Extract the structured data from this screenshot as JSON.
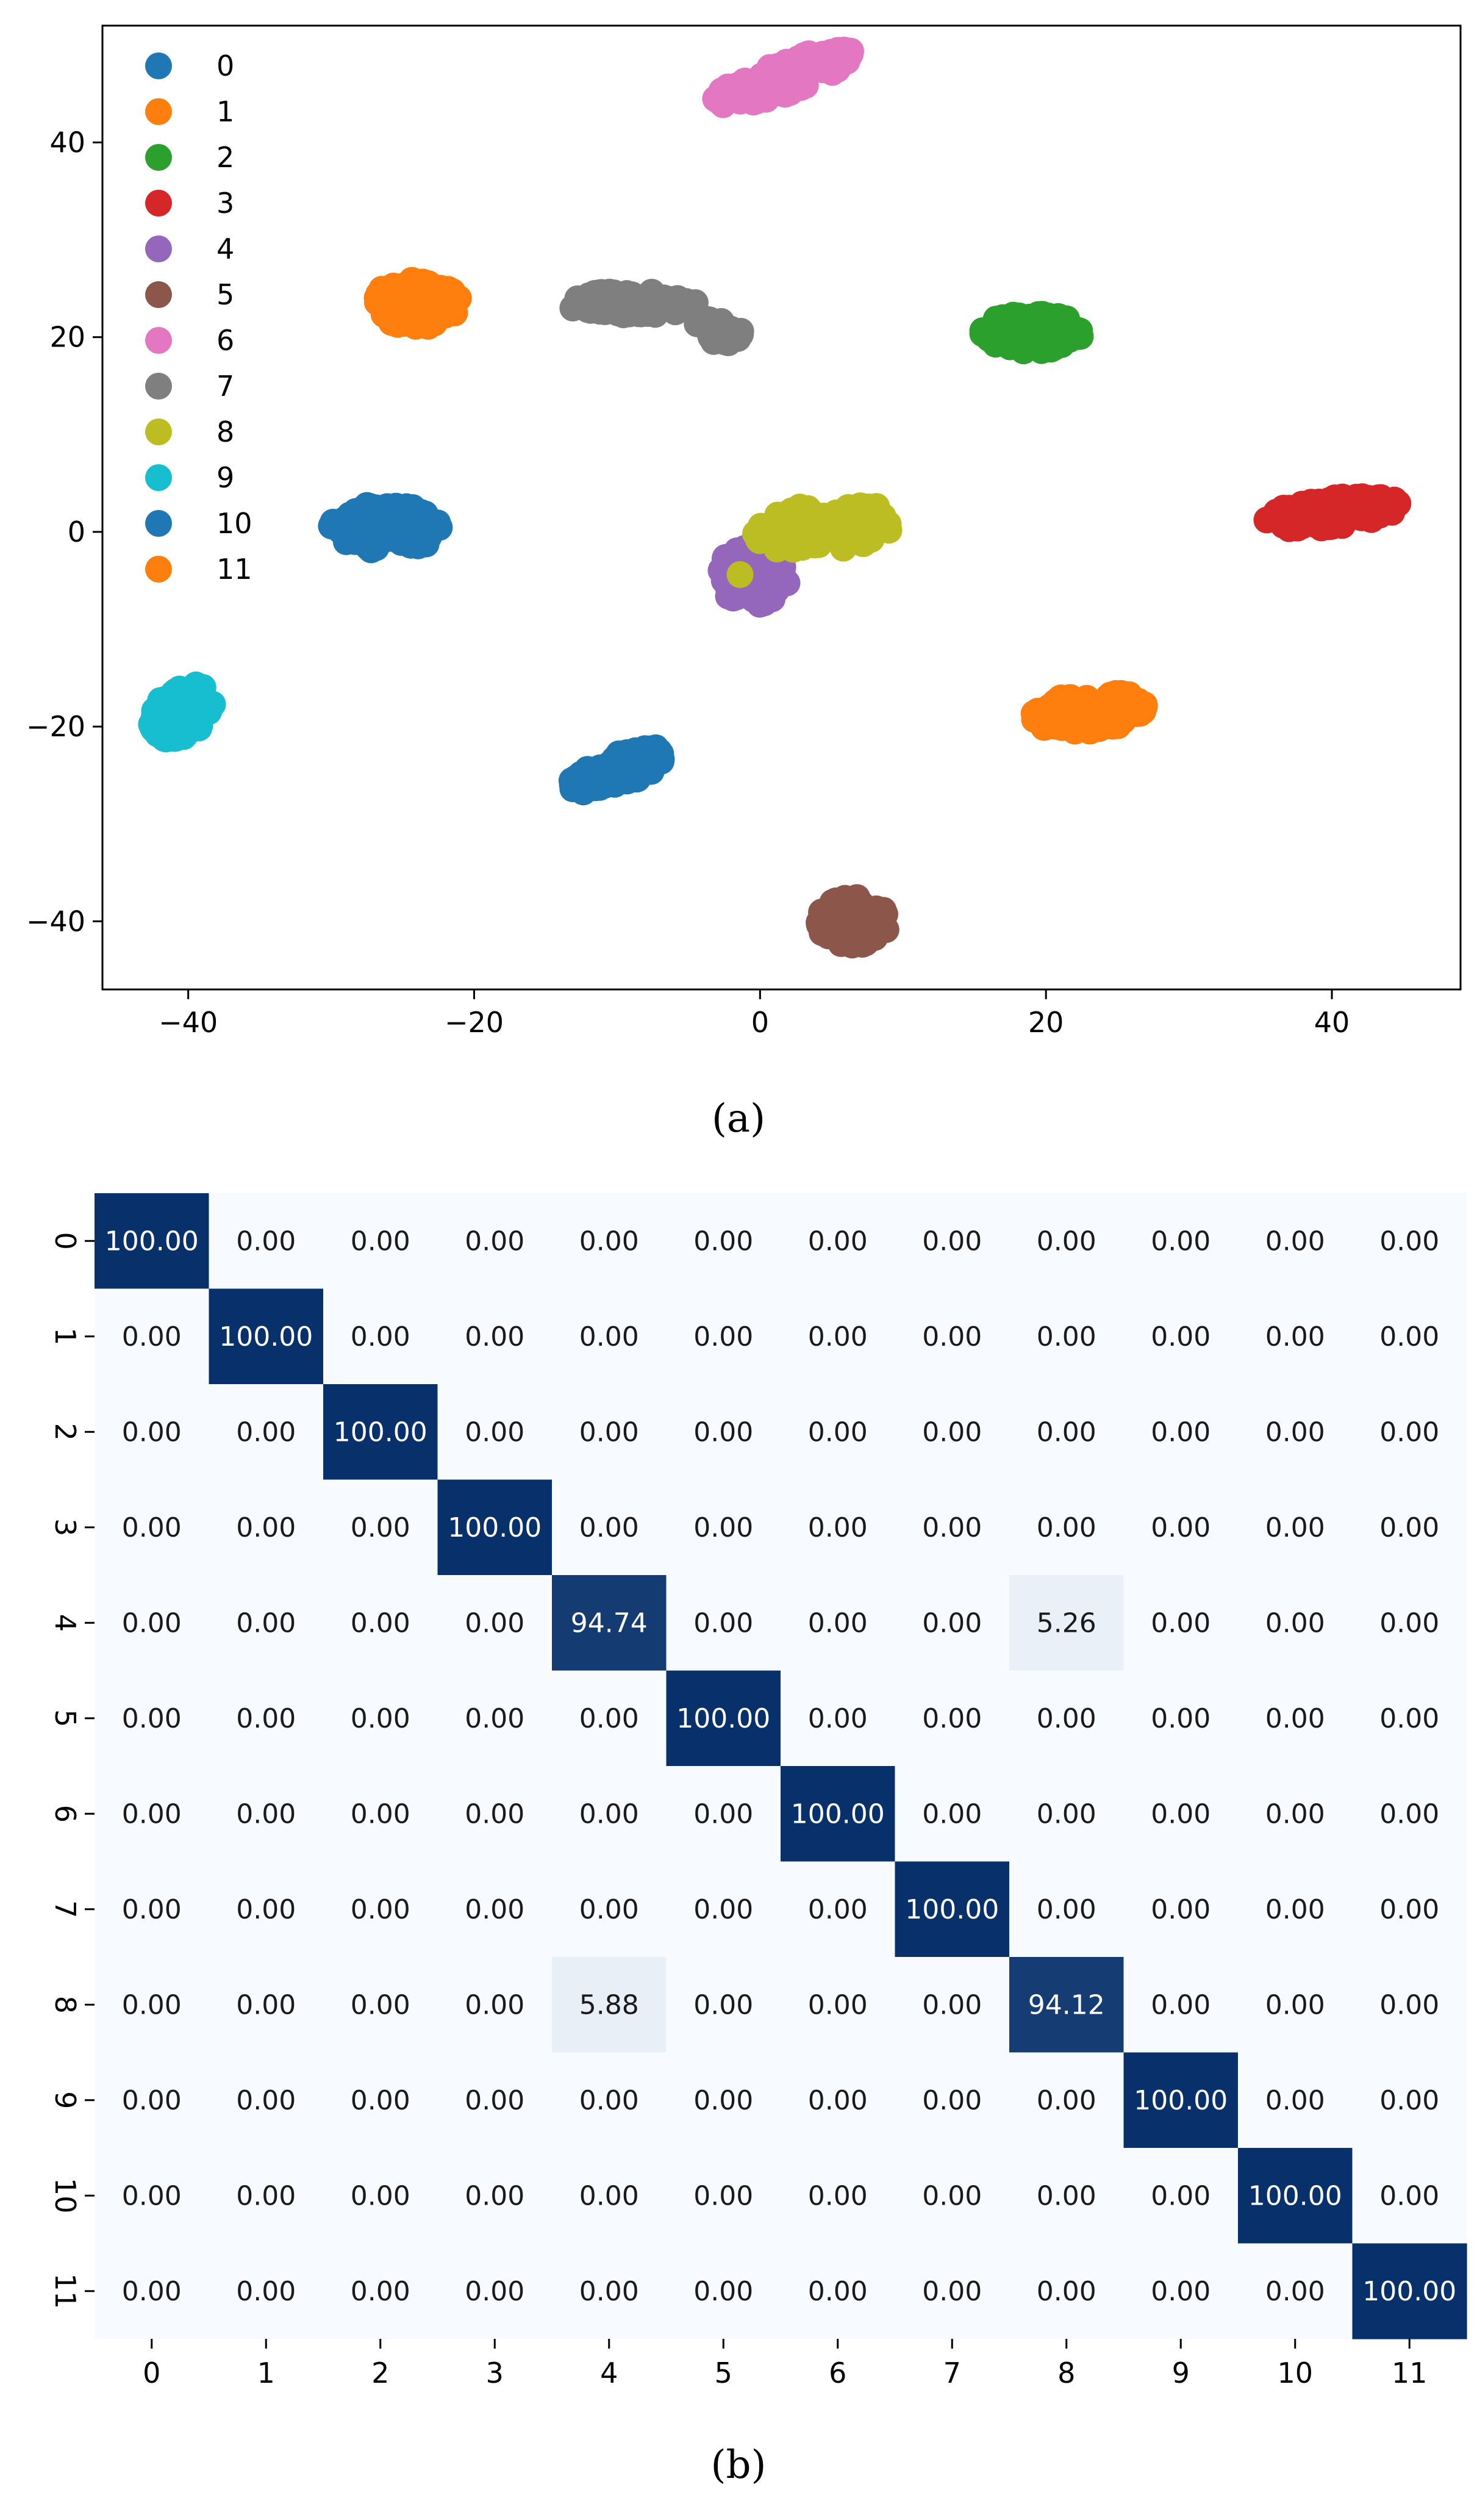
{
  "colors": {
    "c0": "#1f77b4",
    "c1": "#ff7f0e",
    "c2": "#2ca02c",
    "c3": "#d62728",
    "c4": "#9467bd",
    "c5": "#8c564b",
    "c6": "#e377c2",
    "c7": "#7f7f7f",
    "c8": "#bcbd22",
    "c9": "#17becf",
    "heat_low": "#f7fbff",
    "heat_high": "#08306b"
  },
  "chart_data": [
    {
      "type": "scatter",
      "caption": "(a)",
      "xlim": [
        -46,
        49
      ],
      "ylim": [
        -47,
        52
      ],
      "xticks": [
        -40,
        -20,
        0,
        20,
        40
      ],
      "xtick_labels": [
        "−40",
        "−20",
        "0",
        "20",
        "40"
      ],
      "yticks": [
        -40,
        -20,
        0,
        20,
        40
      ],
      "ytick_labels": [
        "−40",
        "−20",
        "0",
        "20",
        "40"
      ],
      "legend": {
        "placement": "top-left",
        "entries": [
          "0",
          "1",
          "2",
          "3",
          "4",
          "5",
          "6",
          "7",
          "8",
          "9",
          "10",
          "11"
        ]
      },
      "series": [
        {
          "name": "0",
          "color_key": "c0",
          "clusters": [
            {
              "cx": -26,
              "cy": 0.5,
              "w": 8,
              "h": 5,
              "angle": 0,
              "n": 100
            }
          ]
        },
        {
          "name": "1",
          "color_key": "c1",
          "clusters": [
            {
              "cx": -24,
              "cy": 23.5,
              "w": 6,
              "h": 5,
              "angle": 0,
              "n": 100
            }
          ]
        },
        {
          "name": "2",
          "color_key": "c2",
          "clusters": [
            {
              "cx": 19,
              "cy": 20.5,
              "w": 7,
              "h": 4,
              "angle": 0,
              "n": 100
            }
          ]
        },
        {
          "name": "3",
          "color_key": "c3",
          "clusters": [
            {
              "cx": 40,
              "cy": 2,
              "w": 10,
              "h": 3,
              "angle": 10,
              "n": 100
            }
          ]
        },
        {
          "name": "4",
          "color_key": "c4",
          "clusters": [
            {
              "cx": -0.5,
              "cy": -4.5,
              "w": 5,
              "h": 6,
              "angle": 0,
              "n": 95
            }
          ]
        },
        {
          "name": "5",
          "color_key": "c5",
          "clusters": [
            {
              "cx": 6.5,
              "cy": -40,
              "w": 5,
              "h": 5,
              "angle": 0,
              "n": 100
            }
          ]
        },
        {
          "name": "6",
          "color_key": "c6",
          "clusters": [
            {
              "cx": 1.5,
              "cy": 46.5,
              "w": 12,
              "h": 3,
              "angle": 30,
              "n": 100
            }
          ]
        },
        {
          "name": "7",
          "color_key": "c7",
          "clusters": [
            {
              "cx": -9,
              "cy": 23.5,
              "w": 9,
              "h": 2.5,
              "angle": 0,
              "n": 70
            },
            {
              "cx": -3,
              "cy": 20.5,
              "w": 3.5,
              "h": 3,
              "angle": -20,
              "n": 30
            }
          ]
        },
        {
          "name": "8",
          "color_key": "c8",
          "clusters": [
            {
              "cx": 4.5,
              "cy": 0.5,
              "w": 10,
              "h": 5,
              "angle": 10,
              "n": 95
            },
            {
              "cx": -1.2,
              "cy": -4.5,
              "w": 0.6,
              "h": 0.6,
              "angle": 0,
              "n": 1
            }
          ]
        },
        {
          "name": "9",
          "color_key": "c9",
          "clusters": [
            {
              "cx": -40.5,
              "cy": -18.5,
              "w": 4,
              "h": 6,
              "angle": -25,
              "n": 100
            }
          ]
        },
        {
          "name": "10",
          "color_key": "c0",
          "clusters": [
            {
              "cx": -10,
              "cy": -24.5,
              "w": 8,
              "h": 3,
              "angle": 30,
              "n": 100
            }
          ]
        },
        {
          "name": "11",
          "color_key": "c1",
          "clusters": [
            {
              "cx": 23,
              "cy": -18.5,
              "w": 8,
              "h": 4,
              "angle": 10,
              "n": 100
            }
          ]
        }
      ]
    },
    {
      "type": "heatmap",
      "caption": "(b)",
      "row_labels": [
        "0",
        "1",
        "2",
        "3",
        "4",
        "5",
        "6",
        "7",
        "8",
        "9",
        "10",
        "11"
      ],
      "col_labels": [
        "0",
        "1",
        "2",
        "3",
        "4",
        "5",
        "6",
        "7",
        "8",
        "9",
        "10",
        "11"
      ],
      "vmin": 0,
      "vmax": 100,
      "values": [
        [
          100.0,
          0,
          0,
          0,
          0,
          0,
          0,
          0,
          0,
          0,
          0,
          0
        ],
        [
          0,
          100.0,
          0,
          0,
          0,
          0,
          0,
          0,
          0,
          0,
          0,
          0
        ],
        [
          0,
          0,
          100.0,
          0,
          0,
          0,
          0,
          0,
          0,
          0,
          0,
          0
        ],
        [
          0,
          0,
          0,
          100.0,
          0,
          0,
          0,
          0,
          0,
          0,
          0,
          0
        ],
        [
          0,
          0,
          0,
          0,
          94.74,
          0,
          0,
          0,
          5.26,
          0,
          0,
          0
        ],
        [
          0,
          0,
          0,
          0,
          0,
          100.0,
          0,
          0,
          0,
          0,
          0,
          0
        ],
        [
          0,
          0,
          0,
          0,
          0,
          0,
          100.0,
          0,
          0,
          0,
          0,
          0
        ],
        [
          0,
          0,
          0,
          0,
          0,
          0,
          0,
          100.0,
          0,
          0,
          0,
          0
        ],
        [
          0,
          0,
          0,
          0,
          5.88,
          0,
          0,
          0,
          94.12,
          0,
          0,
          0
        ],
        [
          0,
          0,
          0,
          0,
          0,
          0,
          0,
          0,
          0,
          100.0,
          0,
          0
        ],
        [
          0,
          0,
          0,
          0,
          0,
          0,
          0,
          0,
          0,
          0,
          100.0,
          0
        ],
        [
          0,
          0,
          0,
          0,
          0,
          0,
          0,
          0,
          0,
          0,
          0,
          100.0
        ]
      ]
    }
  ]
}
